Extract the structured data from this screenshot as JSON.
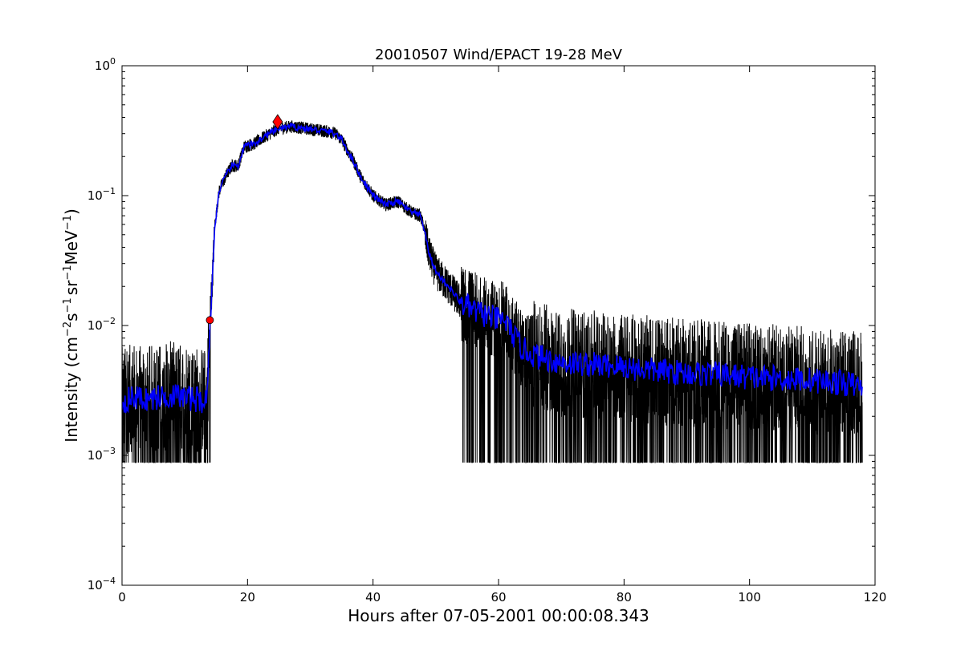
{
  "chart_data": {
    "type": "line",
    "title": "20010507 Wind/EPACT 19-28 MeV",
    "xlabel": "Hours after 07-05-2001 00:00:08.343",
    "ylabel": {
      "prefix": "Intensity (cm",
      "e1": "−2",
      "mid1": "s",
      "e2": "−1",
      "mid2": "sr",
      "e3": "−1",
      "mid3": "MeV",
      "e4": "−1",
      "suffix": ")"
    },
    "xlim": [
      0,
      120
    ],
    "ylim": [
      0.0001,
      1
    ],
    "yscale": "log",
    "xticks": [
      0,
      20,
      40,
      60,
      80,
      100,
      120
    ],
    "yticks": [
      {
        "value": 0.0001,
        "base": "10",
        "exp": "−4"
      },
      {
        "value": 0.001,
        "base": "10",
        "exp": "−3"
      },
      {
        "value": 0.01,
        "base": "10",
        "exp": "−2"
      },
      {
        "value": 0.1,
        "base": "10",
        "exp": "−1"
      },
      {
        "value": 1,
        "base": "10",
        "exp": "0"
      }
    ],
    "grid": false,
    "colors": {
      "raw": "#000000",
      "smoothed": "#0000ff",
      "marker": "#ff0000"
    },
    "profile": {
      "x": [
        0,
        2,
        4,
        6,
        8,
        10,
        12,
        13.5,
        13.9,
        14.3,
        14.8,
        15.5,
        16.5,
        17.5,
        18.5,
        19.5,
        21,
        23,
        25,
        27,
        29,
        31,
        33,
        34,
        35,
        36,
        37,
        38,
        40,
        42,
        44,
        46,
        47.5,
        48,
        48.5,
        49,
        50,
        52,
        54,
        56,
        58,
        60,
        61,
        62,
        63,
        64,
        66,
        68,
        70,
        75,
        80,
        85,
        90,
        95,
        100,
        105,
        110,
        115,
        118
      ],
      "y": [
        0.0026,
        0.0028,
        0.0027,
        0.0028,
        0.0029,
        0.0028,
        0.0027,
        0.0026,
        0.008,
        0.018,
        0.06,
        0.11,
        0.14,
        0.17,
        0.17,
        0.24,
        0.25,
        0.29,
        0.33,
        0.34,
        0.33,
        0.32,
        0.31,
        0.3,
        0.27,
        0.22,
        0.18,
        0.14,
        0.1,
        0.085,
        0.09,
        0.075,
        0.07,
        0.06,
        0.045,
        0.035,
        0.026,
        0.02,
        0.015,
        0.013,
        0.012,
        0.011,
        0.011,
        0.009,
        0.0075,
        0.0065,
        0.0058,
        0.0055,
        0.0052,
        0.005,
        0.0048,
        0.0045,
        0.0043,
        0.0042,
        0.004,
        0.0039,
        0.0038,
        0.0036,
        0.0034
      ]
    },
    "series": [
      {
        "style": "raw",
        "color": "#000000"
      },
      {
        "style": "smoothed",
        "color": "#0000ff"
      }
    ],
    "markers": [
      {
        "shape": "circle",
        "x": 14.0,
        "y": 0.011,
        "color": "#ff0000"
      },
      {
        "shape": "diamond",
        "x": 24.8,
        "y": 0.37,
        "color": "#ff0000"
      }
    ]
  }
}
